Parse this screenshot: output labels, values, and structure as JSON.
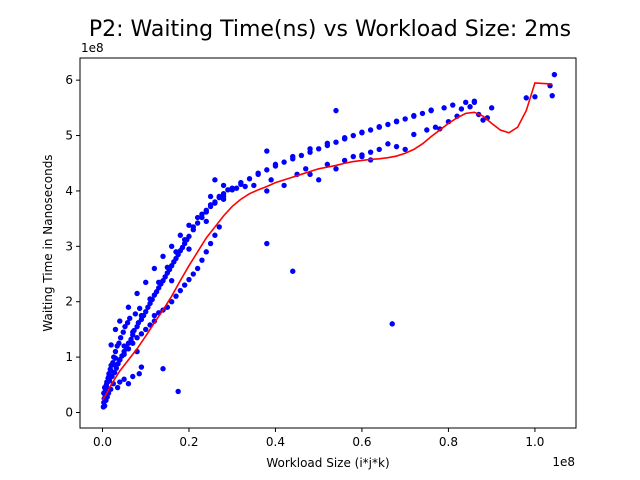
{
  "chart_data": {
    "type": "scatter",
    "title": "P2: Waiting Time(ns) vs Workload Size: 2ms",
    "xlabel": "Workload Size (i*j*k)",
    "ylabel": "Waiting Time in Nanoseconds",
    "x_offset_label": "1e8",
    "y_offset_label": "1e8",
    "xlim": [
      -0.052,
      1.095
    ],
    "ylim": [
      -0.28,
      6.4
    ],
    "x_ticks": [
      0.0,
      0.2,
      0.4,
      0.6,
      0.8,
      1.0
    ],
    "x_tick_labels": [
      "0.0",
      "0.2",
      "0.4",
      "0.6",
      "0.8",
      "1.0"
    ],
    "y_ticks": [
      0,
      1,
      2,
      3,
      4,
      5,
      6
    ],
    "y_tick_labels": [
      "0",
      "1",
      "2",
      "3",
      "4",
      "5",
      "6"
    ],
    "grid": false,
    "series": [
      {
        "kind": "scatter",
        "color": "#0000ff",
        "points": [
          [
            0.002,
            0.1
          ],
          [
            0.003,
            0.18
          ],
          [
            0.004,
            0.25
          ],
          [
            0.005,
            0.12
          ],
          [
            0.006,
            0.32
          ],
          [
            0.007,
            0.4
          ],
          [
            0.008,
            0.22
          ],
          [
            0.009,
            0.5
          ],
          [
            0.01,
            0.45
          ],
          [
            0.011,
            0.28
          ],
          [
            0.012,
            0.55
          ],
          [
            0.013,
            0.62
          ],
          [
            0.014,
            0.35
          ],
          [
            0.015,
            0.7
          ],
          [
            0.016,
            0.58
          ],
          [
            0.018,
            0.78
          ],
          [
            0.019,
            0.42
          ],
          [
            0.02,
            0.85
          ],
          [
            0.022,
            0.65
          ],
          [
            0.024,
            0.9
          ],
          [
            0.025,
            0.52
          ],
          [
            0.026,
            1.0
          ],
          [
            0.028,
            0.72
          ],
          [
            0.03,
            1.1
          ],
          [
            0.032,
            0.8
          ],
          [
            0.034,
            1.2
          ],
          [
            0.036,
            0.88
          ],
          [
            0.038,
            1.25
          ],
          [
            0.04,
            0.95
          ],
          [
            0.042,
            1.35
          ],
          [
            0.045,
            1.02
          ],
          [
            0.048,
            1.45
          ],
          [
            0.05,
            1.1
          ],
          [
            0.052,
            1.55
          ],
          [
            0.055,
            1.18
          ],
          [
            0.058,
            1.62
          ],
          [
            0.06,
            1.25
          ],
          [
            0.063,
            1.7
          ],
          [
            0.066,
            1.32
          ],
          [
            0.07,
            1.4
          ],
          [
            0.073,
            1.48
          ],
          [
            0.076,
            1.78
          ],
          [
            0.08,
            1.55
          ],
          [
            0.083,
            1.62
          ],
          [
            0.086,
            1.88
          ],
          [
            0.09,
            1.68
          ],
          [
            0.095,
            1.75
          ],
          [
            0.1,
            1.82
          ],
          [
            0.105,
            1.9
          ],
          [
            0.11,
            1.97
          ],
          [
            0.115,
            2.04
          ],
          [
            0.12,
            2.12
          ],
          [
            0.125,
            2.18
          ],
          [
            0.13,
            2.25
          ],
          [
            0.135,
            2.32
          ],
          [
            0.14,
            2.38
          ],
          [
            0.145,
            2.45
          ],
          [
            0.15,
            2.52
          ],
          [
            0.155,
            2.58
          ],
          [
            0.16,
            2.65
          ],
          [
            0.165,
            2.72
          ],
          [
            0.17,
            2.78
          ],
          [
            0.175,
            2.85
          ],
          [
            0.18,
            2.92
          ],
          [
            0.185,
            2.98
          ],
          [
            0.19,
            3.05
          ],
          [
            0.195,
            3.12
          ],
          [
            0.2,
            3.18
          ],
          [
            0.21,
            3.3
          ],
          [
            0.22,
            3.42
          ],
          [
            0.23,
            3.52
          ],
          [
            0.24,
            3.62
          ],
          [
            0.25,
            3.72
          ],
          [
            0.26,
            3.8
          ],
          [
            0.27,
            3.88
          ],
          [
            0.28,
            3.95
          ],
          [
            0.3,
            4.05
          ],
          [
            0.32,
            4.15
          ],
          [
            0.34,
            4.22
          ],
          [
            0.36,
            4.3
          ],
          [
            0.38,
            4.38
          ],
          [
            0.4,
            4.45
          ],
          [
            0.42,
            4.52
          ],
          [
            0.44,
            4.58
          ],
          [
            0.46,
            4.64
          ],
          [
            0.48,
            4.7
          ],
          [
            0.5,
            4.76
          ],
          [
            0.52,
            4.82
          ],
          [
            0.54,
            4.88
          ],
          [
            0.56,
            4.94
          ],
          [
            0.58,
            5.0
          ],
          [
            0.6,
            5.05
          ],
          [
            0.62,
            5.1
          ],
          [
            0.64,
            5.15
          ],
          [
            0.66,
            5.2
          ],
          [
            0.68,
            5.25
          ],
          [
            0.7,
            5.3
          ],
          [
            0.72,
            5.35
          ],
          [
            0.74,
            5.4
          ],
          [
            0.76,
            5.45
          ],
          [
            0.02,
            1.22
          ],
          [
            0.03,
            1.5
          ],
          [
            0.04,
            1.65
          ],
          [
            0.06,
            1.9
          ],
          [
            0.08,
            2.15
          ],
          [
            0.1,
            2.35
          ],
          [
            0.12,
            2.6
          ],
          [
            0.14,
            2.82
          ],
          [
            0.16,
            3.0
          ],
          [
            0.18,
            3.2
          ],
          [
            0.2,
            3.38
          ],
          [
            0.22,
            3.52
          ],
          [
            0.24,
            3.65
          ],
          [
            0.26,
            3.78
          ],
          [
            0.28,
            3.9
          ],
          [
            0.3,
            4.02
          ],
          [
            0.03,
            0.98
          ],
          [
            0.05,
            1.2
          ],
          [
            0.07,
            1.45
          ],
          [
            0.09,
            1.75
          ],
          [
            0.11,
            2.05
          ],
          [
            0.13,
            2.35
          ],
          [
            0.15,
            2.62
          ],
          [
            0.17,
            2.9
          ],
          [
            0.19,
            3.12
          ],
          [
            0.21,
            3.35
          ],
          [
            0.23,
            3.58
          ],
          [
            0.25,
            3.75
          ],
          [
            0.27,
            3.9
          ],
          [
            0.29,
            4.02
          ],
          [
            0.08,
            1.1
          ],
          [
            0.12,
            1.75
          ],
          [
            0.16,
            2.38
          ],
          [
            0.2,
            2.95
          ],
          [
            0.24,
            3.45
          ],
          [
            0.28,
            3.85
          ],
          [
            0.32,
            4.12
          ],
          [
            0.36,
            4.32
          ],
          [
            0.4,
            4.48
          ],
          [
            0.44,
            4.62
          ],
          [
            0.48,
            4.76
          ],
          [
            0.52,
            4.86
          ],
          [
            0.56,
            4.96
          ],
          [
            0.6,
            5.06
          ],
          [
            0.64,
            5.16
          ],
          [
            0.68,
            5.26
          ],
          [
            0.72,
            5.36
          ],
          [
            0.76,
            5.46
          ],
          [
            0.79,
            5.5
          ],
          [
            0.81,
            5.55
          ],
          [
            0.84,
            5.6
          ],
          [
            0.86,
            5.62
          ],
          [
            0.87,
            5.38
          ],
          [
            0.89,
            5.32
          ],
          [
            0.9,
            5.5
          ],
          [
            0.98,
            5.68
          ],
          [
            1.0,
            5.7
          ],
          [
            1.035,
            5.9
          ],
          [
            1.045,
            6.1
          ],
          [
            1.04,
            5.72
          ],
          [
            0.38,
            4.72
          ],
          [
            0.44,
            2.55
          ],
          [
            0.47,
            4.4
          ],
          [
            0.54,
            5.45
          ],
          [
            0.56,
            4.95
          ],
          [
            0.6,
            4.62
          ],
          [
            0.62,
            4.56
          ],
          [
            0.67,
            1.6
          ],
          [
            0.68,
            4.8
          ],
          [
            0.7,
            4.75
          ],
          [
            0.72,
            5.02
          ],
          [
            0.75,
            5.1
          ],
          [
            0.77,
            5.15
          ],
          [
            0.78,
            5.12
          ],
          [
            0.8,
            5.25
          ],
          [
            0.82,
            5.35
          ],
          [
            0.83,
            5.48
          ],
          [
            0.85,
            5.52
          ],
          [
            0.86,
            5.6
          ],
          [
            0.88,
            5.28
          ],
          [
            0.09,
            0.82
          ],
          [
            0.085,
            0.7
          ],
          [
            0.14,
            0.79
          ],
          [
            0.175,
            0.38
          ],
          [
            0.06,
            0.52
          ],
          [
            0.07,
            0.65
          ],
          [
            0.05,
            0.6
          ],
          [
            0.04,
            0.55
          ],
          [
            0.035,
            0.45
          ],
          [
            0.26,
            4.2
          ],
          [
            0.25,
            3.9
          ],
          [
            0.38,
            3.05
          ],
          [
            0.28,
            4.1
          ],
          [
            0.31,
            4.05
          ],
          [
            0.33,
            4.08
          ],
          [
            0.35,
            4.1
          ],
          [
            0.38,
            4.0
          ],
          [
            0.39,
            4.2
          ],
          [
            0.42,
            4.1
          ],
          [
            0.45,
            4.3
          ],
          [
            0.48,
            4.3
          ],
          [
            0.5,
            4.2
          ],
          [
            0.52,
            4.48
          ],
          [
            0.54,
            4.4
          ],
          [
            0.56,
            4.55
          ],
          [
            0.58,
            4.62
          ],
          [
            0.6,
            4.65
          ],
          [
            0.62,
            4.7
          ],
          [
            0.64,
            4.75
          ],
          [
            0.66,
            4.85
          ],
          [
            0.18,
            2.2
          ],
          [
            0.19,
            2.3
          ],
          [
            0.2,
            2.4
          ],
          [
            0.17,
            2.1
          ],
          [
            0.16,
            2.0
          ],
          [
            0.15,
            1.9
          ],
          [
            0.14,
            1.85
          ],
          [
            0.13,
            1.8
          ],
          [
            0.22,
            2.6
          ],
          [
            0.23,
            2.75
          ],
          [
            0.24,
            2.9
          ],
          [
            0.25,
            3.05
          ],
          [
            0.26,
            3.2
          ],
          [
            0.27,
            3.35
          ],
          [
            0.21,
            2.5
          ],
          [
            0.12,
            1.65
          ],
          [
            0.11,
            1.58
          ],
          [
            0.1,
            1.5
          ],
          [
            0.09,
            1.42
          ],
          [
            0.08,
            1.35
          ],
          [
            0.07,
            1.25
          ],
          [
            0.06,
            1.15
          ],
          [
            0.05,
            1.05
          ],
          [
            0.04,
            0.95
          ],
          [
            0.03,
            0.85
          ],
          [
            0.02,
            0.75
          ],
          [
            0.015,
            0.65
          ],
          [
            0.01,
            0.55
          ],
          [
            0.005,
            0.45
          ],
          [
            0.003,
            0.35
          ]
        ]
      },
      {
        "kind": "line",
        "color": "#ff0000",
        "points": [
          [
            0.0,
            0.22
          ],
          [
            0.01,
            0.35
          ],
          [
            0.02,
            0.5
          ],
          [
            0.04,
            0.75
          ],
          [
            0.06,
            0.95
          ],
          [
            0.08,
            1.15
          ],
          [
            0.1,
            1.38
          ],
          [
            0.12,
            1.62
          ],
          [
            0.14,
            1.85
          ],
          [
            0.16,
            2.1
          ],
          [
            0.18,
            2.38
          ],
          [
            0.2,
            2.65
          ],
          [
            0.22,
            2.9
          ],
          [
            0.24,
            3.15
          ],
          [
            0.26,
            3.35
          ],
          [
            0.28,
            3.55
          ],
          [
            0.3,
            3.72
          ],
          [
            0.32,
            3.85
          ],
          [
            0.34,
            3.95
          ],
          [
            0.36,
            4.02
          ],
          [
            0.38,
            4.08
          ],
          [
            0.4,
            4.15
          ],
          [
            0.42,
            4.2
          ],
          [
            0.44,
            4.25
          ],
          [
            0.46,
            4.3
          ],
          [
            0.48,
            4.35
          ],
          [
            0.5,
            4.4
          ],
          [
            0.52,
            4.43
          ],
          [
            0.54,
            4.46
          ],
          [
            0.56,
            4.5
          ],
          [
            0.58,
            4.53
          ],
          [
            0.6,
            4.55
          ],
          [
            0.62,
            4.57
          ],
          [
            0.64,
            4.58
          ],
          [
            0.66,
            4.6
          ],
          [
            0.68,
            4.63
          ],
          [
            0.7,
            4.68
          ],
          [
            0.72,
            4.75
          ],
          [
            0.74,
            4.85
          ],
          [
            0.76,
            4.98
          ],
          [
            0.78,
            5.1
          ],
          [
            0.8,
            5.22
          ],
          [
            0.82,
            5.32
          ],
          [
            0.84,
            5.4
          ],
          [
            0.86,
            5.42
          ],
          [
            0.88,
            5.35
          ],
          [
            0.9,
            5.22
          ],
          [
            0.92,
            5.1
          ],
          [
            0.94,
            5.05
          ],
          [
            0.96,
            5.15
          ],
          [
            0.98,
            5.45
          ],
          [
            1.0,
            5.95
          ],
          [
            1.04,
            5.93
          ]
        ]
      }
    ]
  }
}
